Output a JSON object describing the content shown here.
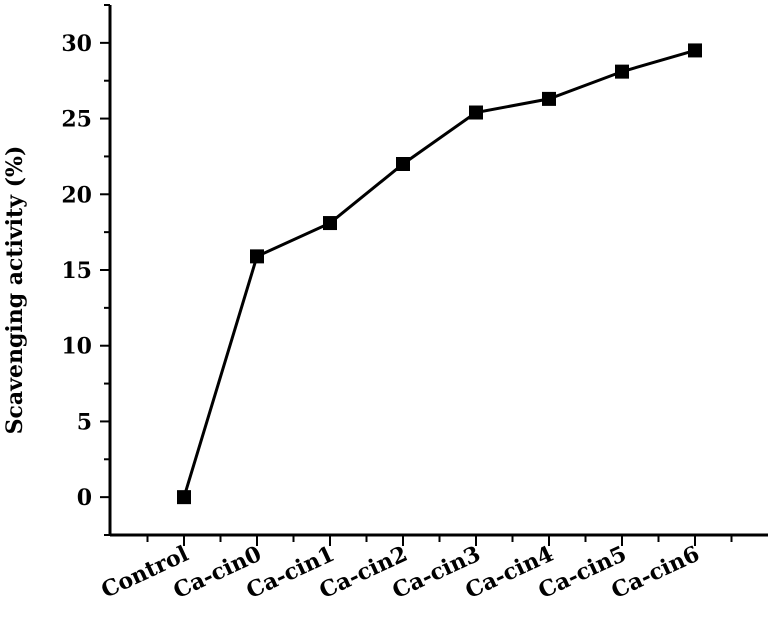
{
  "chart_data": {
    "type": "line",
    "categories": [
      "Control",
      "Ca-cin0",
      "Ca-cin1",
      "Ca-cin2",
      "Ca-cin3",
      "Ca-cin4",
      "Ca-cin5",
      "Ca-cin6"
    ],
    "series": [
      {
        "values": [
          0,
          15.9,
          18.1,
          22.0,
          25.4,
          26.3,
          28.1,
          29.5
        ]
      }
    ],
    "xlabel": "",
    "ylabel": "Scavenging activity (%)",
    "ylim": [
      -2.5,
      32.5
    ],
    "yticks": [
      0,
      5,
      10,
      15,
      20,
      25,
      30
    ],
    "grid": false,
    "marker": "square",
    "color": "#000000"
  }
}
